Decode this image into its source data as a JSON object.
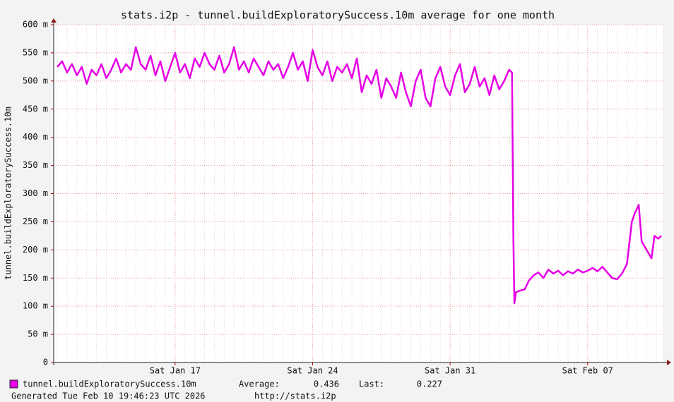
{
  "chart_data": {
    "type": "line",
    "title": "stats.i2p - tunnel.buildExploratorySuccess.10m average for one month",
    "y_label": "tunnel.buildExploratorySuccess.10m",
    "x": [
      11,
      11.25,
      11.5,
      11.75,
      12,
      12.25,
      12.5,
      12.75,
      13,
      13.25,
      13.5,
      13.75,
      14,
      14.25,
      14.5,
      14.75,
      15,
      15.25,
      15.5,
      15.75,
      16,
      16.25,
      16.5,
      16.75,
      17,
      17.25,
      17.5,
      17.75,
      18,
      18.25,
      18.5,
      18.75,
      19,
      19.25,
      19.5,
      19.75,
      20,
      20.25,
      20.5,
      20.75,
      21,
      21.25,
      21.5,
      21.75,
      22,
      22.25,
      22.5,
      22.75,
      23,
      23.25,
      23.5,
      23.75,
      24,
      24.25,
      24.5,
      24.75,
      25,
      25.25,
      25.5,
      25.75,
      26,
      26.25,
      26.5,
      26.75,
      27,
      27.25,
      27.5,
      27.75,
      28,
      28.25,
      28.5,
      28.75,
      29,
      29.25,
      29.5,
      29.75,
      30,
      30.25,
      30.5,
      30.75,
      31,
      31.25,
      31.5,
      31.75,
      32,
      32.25,
      32.5,
      32.75,
      33,
      33.25,
      33.5,
      33.75,
      34,
      34.15,
      34.22,
      34.27,
      34.35,
      34.6,
      34.8,
      35,
      35.25,
      35.5,
      35.75,
      36,
      36.25,
      36.5,
      36.75,
      37,
      37.25,
      37.5,
      37.75,
      38,
      38.25,
      38.5,
      38.75,
      39,
      39.25,
      39.5,
      39.75,
      40,
      40.25,
      40.4,
      40.6,
      40.75,
      41,
      41.25,
      41.4,
      41.6,
      41.75
    ],
    "series": [
      {
        "name": "tunnel.buildExploratorySuccess.10m",
        "color": "#e600e6",
        "values": [
          525,
          535,
          515,
          530,
          510,
          525,
          495,
          520,
          510,
          530,
          505,
          520,
          540,
          515,
          530,
          520,
          560,
          530,
          520,
          545,
          510,
          535,
          500,
          525,
          550,
          515,
          530,
          505,
          540,
          525,
          550,
          530,
          520,
          545,
          515,
          530,
          560,
          520,
          535,
          515,
          540,
          525,
          510,
          535,
          520,
          530,
          505,
          525,
          550,
          520,
          535,
          500,
          555,
          525,
          510,
          535,
          500,
          525,
          515,
          530,
          505,
          540,
          480,
          510,
          495,
          520,
          470,
          505,
          490,
          470,
          515,
          480,
          455,
          500,
          520,
          470,
          455,
          505,
          525,
          490,
          475,
          510,
          530,
          480,
          495,
          525,
          490,
          505,
          475,
          510,
          485,
          500,
          520,
          515,
          220,
          105,
          125,
          128,
          130,
          145,
          155,
          160,
          150,
          165,
          158,
          163,
          155,
          162,
          158,
          165,
          160,
          163,
          168,
          162,
          170,
          160,
          150,
          148,
          158,
          175,
          250,
          265,
          280,
          215,
          200,
          185,
          225,
          220,
          225
        ]
      }
    ],
    "xlim": [
      10.82,
      41.82
    ],
    "xticks": [
      {
        "value": 17,
        "label": "Sat Jan 17"
      },
      {
        "value": 24,
        "label": "Sat Jan 24"
      },
      {
        "value": 31,
        "label": "Sat Jan 31"
      },
      {
        "value": 38,
        "label": "Sat Feb 07"
      }
    ],
    "ylim": [
      0,
      600
    ],
    "yticks": [
      0,
      {
        "value": 50,
        "label": "50 m"
      },
      {
        "value": 100,
        "label": "100 m"
      },
      {
        "value": 150,
        "label": "150 m"
      },
      {
        "value": 200,
        "label": "200 m"
      },
      {
        "value": 250,
        "label": "250 m"
      },
      {
        "value": 300,
        "label": "300 m"
      },
      {
        "value": 350,
        "label": "350 m"
      },
      {
        "value": 400,
        "label": "400 m"
      },
      {
        "value": 450,
        "label": "450 m"
      },
      {
        "value": 500,
        "label": "500 m"
      },
      {
        "value": 550,
        "label": "550 m"
      },
      {
        "value": 600,
        "label": "600 m"
      }
    ],
    "grid": true,
    "legend_stats": {
      "average_label": "Average:",
      "average": 0.436,
      "last_label": "Last:",
      "last": 0.227
    },
    "footer": {
      "generated": "Generated Tue Feb 10 19:46:23 UTC 2026",
      "url": "http://stats.i2p"
    }
  }
}
